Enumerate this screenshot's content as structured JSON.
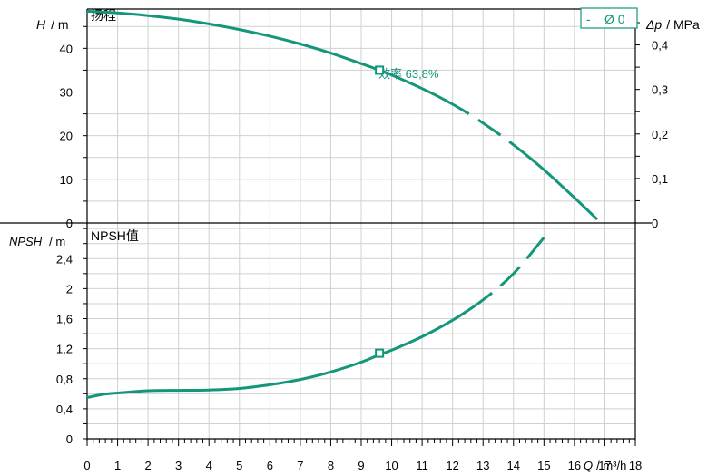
{
  "chart_data": [
    {
      "type": "line",
      "title": "扬程",
      "ylabel_italic": "H",
      "ylabel_unit": "/ m",
      "y2label_italic": "Δp",
      "y2label_unit": "/ MPa",
      "ylim": [
        0,
        49
      ],
      "yticks": [
        "0",
        "10",
        "20",
        "30",
        "40"
      ],
      "y2ticks": [
        "0",
        "0,1",
        "0,2",
        "0,3",
        "0,4"
      ],
      "legend": {
        "dash": "-",
        "label": "Ø 0",
        "position": "top-right"
      },
      "annotation": {
        "text": "效率 63,8%",
        "x": 9.6,
        "y": 35
      },
      "series": [
        {
          "color": "#14967a",
          "x": [
            0,
            1,
            2,
            3,
            4,
            5,
            6,
            7,
            8,
            9,
            9.6,
            10,
            11,
            12,
            13,
            14,
            15,
            16,
            16.75
          ],
          "y": [
            48.5,
            48.1,
            47.5,
            46.7,
            45.6,
            44.3,
            42.8,
            41.0,
            38.9,
            36.5,
            35.0,
            33.9,
            30.8,
            27.2,
            22.9,
            17.9,
            12.2,
            5.8,
            0.8
          ]
        }
      ]
    },
    {
      "type": "line",
      "title": "NPSH值",
      "ylabel_italic": "NPSH",
      "ylabel_unit": "/ m",
      "xlabel_italic": "Q",
      "xlabel_unit": "/ m³/h",
      "xlim": [
        0,
        18
      ],
      "xticks": [
        "0",
        "1",
        "2",
        "3",
        "4",
        "5",
        "6",
        "7",
        "8",
        "9",
        "10",
        "11",
        "12",
        "13",
        "14",
        "15",
        "16",
        "17",
        "18"
      ],
      "ylim": [
        0,
        2.85
      ],
      "yticks": [
        "0",
        "0,4",
        "0,8",
        "1,2",
        "1,6",
        "2",
        "2,4"
      ],
      "annotation": {
        "x": 9.6,
        "y": 1.14
      },
      "series": [
        {
          "color": "#14967a",
          "x": [
            0,
            0.5,
            1,
            2,
            3,
            4,
            5,
            6,
            7,
            8,
            9,
            9.6,
            10,
            11,
            12,
            13,
            14,
            15
          ],
          "y": [
            0.55,
            0.59,
            0.61,
            0.64,
            0.645,
            0.65,
            0.67,
            0.72,
            0.79,
            0.89,
            1.02,
            1.12,
            1.18,
            1.36,
            1.58,
            1.85,
            2.2,
            2.68
          ]
        }
      ]
    }
  ]
}
